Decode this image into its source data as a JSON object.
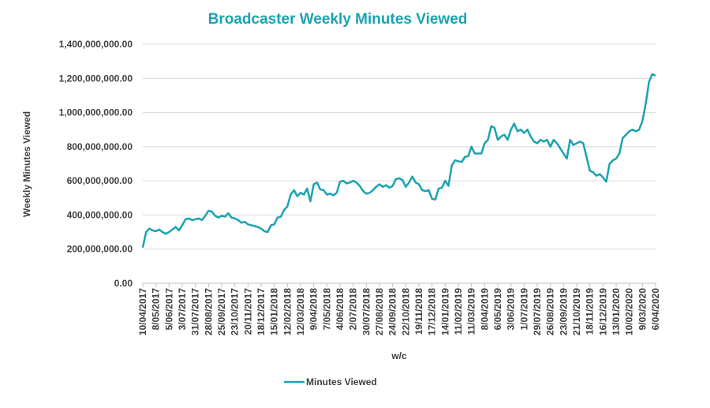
{
  "chart_data": {
    "type": "line",
    "title": "Broadcaster Weekly Minutes Viewed",
    "y_label": "Weekly Minutes Viewed",
    "x_label": "w/c",
    "categories": [
      "10/04/2017",
      null,
      null,
      null,
      "8/05/2017",
      null,
      null,
      null,
      "5/06/2017",
      null,
      null,
      null,
      "3/07/2017",
      null,
      null,
      null,
      "31/07/2017",
      null,
      null,
      null,
      "28/08/2017",
      null,
      null,
      null,
      "25/09/2017",
      null,
      null,
      null,
      "23/10/2017",
      null,
      null,
      null,
      "20/11/2017",
      null,
      null,
      null,
      "18/12/2017",
      null,
      null,
      null,
      "15/01/2018",
      null,
      null,
      null,
      "12/02/2018",
      null,
      null,
      null,
      "12/03/2018",
      null,
      null,
      null,
      "9/04/2018",
      null,
      null,
      null,
      "7/05/2018",
      null,
      null,
      null,
      "4/06/2018",
      null,
      null,
      null,
      "2/07/2018",
      null,
      null,
      null,
      "30/07/2018",
      null,
      null,
      null,
      "27/08/2018",
      null,
      null,
      null,
      "24/09/2018",
      null,
      null,
      null,
      "22/10/2018",
      null,
      null,
      null,
      "19/11/2018",
      null,
      null,
      null,
      "17/12/2018",
      null,
      null,
      null,
      "14/01/2019",
      null,
      null,
      null,
      "11/02/2019",
      null,
      null,
      null,
      "11/03/2019",
      null,
      null,
      null,
      "8/04/2019",
      null,
      null,
      null,
      "6/05/2019",
      null,
      null,
      null,
      "3/06/2019",
      null,
      null,
      null,
      "1/07/2019",
      null,
      null,
      null,
      "29/07/2019",
      null,
      null,
      null,
      "26/08/2019",
      null,
      null,
      null,
      "23/09/2019",
      null,
      null,
      null,
      "21/10/2019",
      null,
      null,
      null,
      "18/11/2019",
      null,
      null,
      null,
      "16/12/2019",
      null,
      null,
      null,
      "13/01/2020",
      null,
      null,
      null,
      "10/02/2020",
      null,
      null,
      null,
      "9/03/2020",
      null,
      null,
      null,
      "6/04/2020"
    ],
    "series": [
      {
        "name": "Minutes Viewed",
        "color": "#1aa3b0",
        "values": [
          210000000,
          300000000,
          320000000,
          310000000,
          305000000,
          315000000,
          300000000,
          290000000,
          300000000,
          315000000,
          330000000,
          310000000,
          340000000,
          375000000,
          380000000,
          370000000,
          375000000,
          380000000,
          370000000,
          395000000,
          425000000,
          420000000,
          395000000,
          385000000,
          395000000,
          390000000,
          410000000,
          385000000,
          380000000,
          370000000,
          355000000,
          360000000,
          345000000,
          340000000,
          335000000,
          330000000,
          320000000,
          305000000,
          300000000,
          340000000,
          345000000,
          385000000,
          390000000,
          430000000,
          450000000,
          520000000,
          545000000,
          510000000,
          530000000,
          520000000,
          555000000,
          480000000,
          580000000,
          590000000,
          550000000,
          545000000,
          520000000,
          525000000,
          515000000,
          530000000,
          595000000,
          600000000,
          585000000,
          590000000,
          600000000,
          590000000,
          570000000,
          540000000,
          525000000,
          530000000,
          545000000,
          565000000,
          580000000,
          565000000,
          575000000,
          560000000,
          570000000,
          610000000,
          615000000,
          605000000,
          565000000,
          590000000,
          625000000,
          590000000,
          580000000,
          545000000,
          540000000,
          545000000,
          495000000,
          490000000,
          555000000,
          560000000,
          600000000,
          570000000,
          690000000,
          720000000,
          715000000,
          710000000,
          740000000,
          745000000,
          800000000,
          760000000,
          760000000,
          760000000,
          820000000,
          840000000,
          920000000,
          910000000,
          840000000,
          860000000,
          870000000,
          840000000,
          900000000,
          935000000,
          890000000,
          900000000,
          880000000,
          900000000,
          860000000,
          830000000,
          820000000,
          840000000,
          830000000,
          840000000,
          800000000,
          840000000,
          820000000,
          790000000,
          760000000,
          730000000,
          840000000,
          810000000,
          820000000,
          830000000,
          820000000,
          740000000,
          660000000,
          650000000,
          630000000,
          640000000,
          620000000,
          595000000,
          700000000,
          720000000,
          730000000,
          760000000,
          850000000,
          870000000,
          890000000,
          900000000,
          890000000,
          900000000,
          950000000,
          1050000000,
          1180000000,
          1225000000,
          1215000000
        ]
      }
    ],
    "ylim": [
      0,
      1400000000
    ],
    "yticks": [
      {
        "value": 0,
        "label": "0.00"
      },
      {
        "value": 200000000,
        "label": "200,000,000.00"
      },
      {
        "value": 400000000,
        "label": "400,000,000.00"
      },
      {
        "value": 600000000,
        "label": "600,000,000.00"
      },
      {
        "value": 800000000,
        "label": "800,000,000.00"
      },
      {
        "value": 1000000000,
        "label": "1,000,000,000.00"
      },
      {
        "value": 1200000000,
        "label": "1,200,000,000.00"
      },
      {
        "value": 1400000000,
        "label": "1,400,000,000.00"
      }
    ],
    "grid": true,
    "legend": "bottom"
  }
}
